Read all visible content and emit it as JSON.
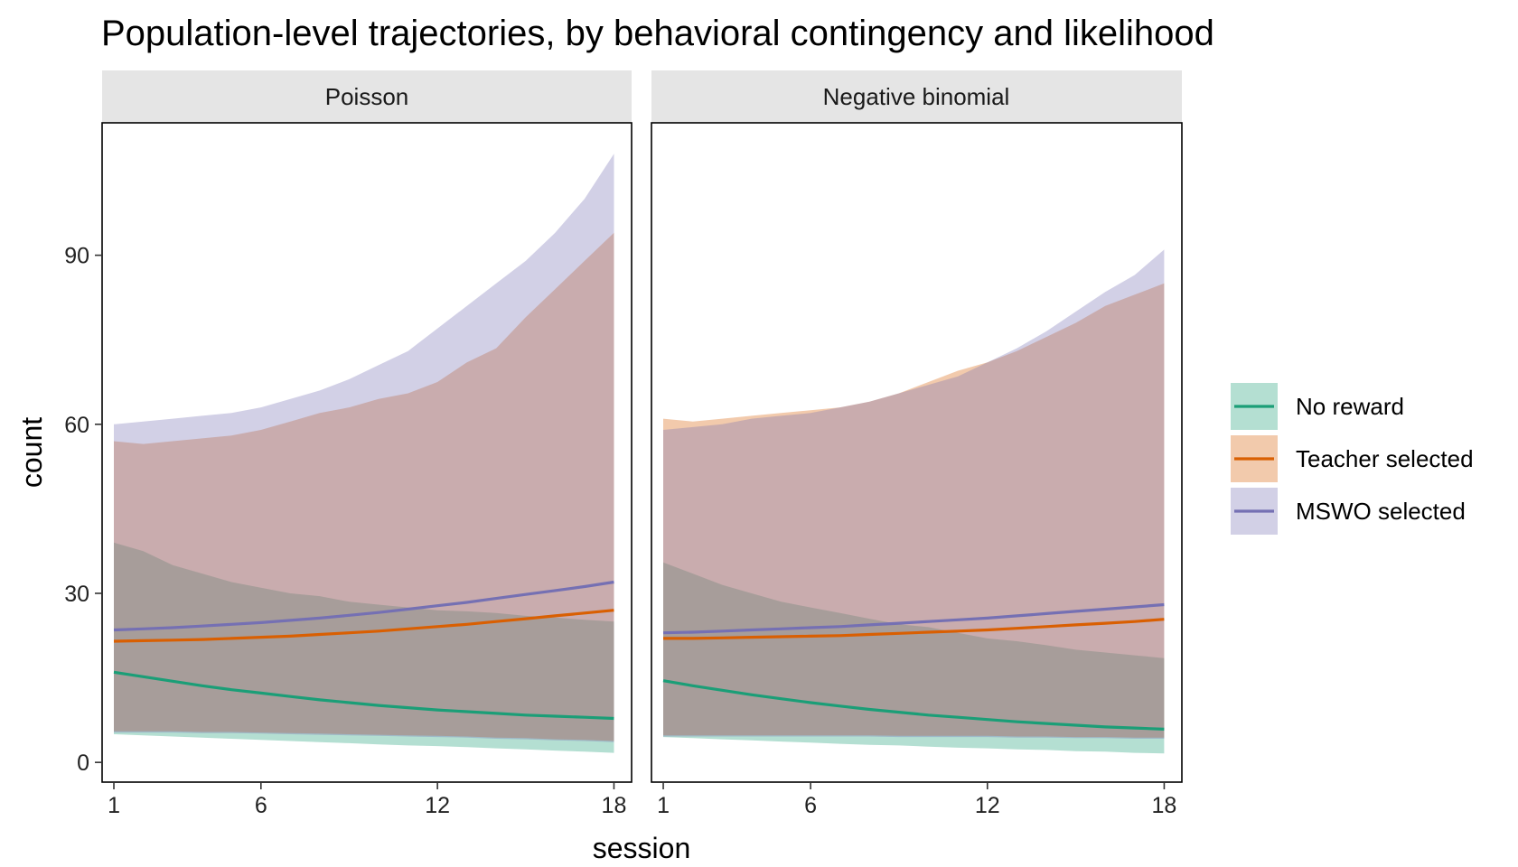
{
  "chart_data": {
    "type": "area",
    "title": "Population-level trajectories, by behavioral contingency and likelihood",
    "xlabel": "session",
    "ylabel": "count",
    "xlim": [
      0.6,
      18.6
    ],
    "ylim": [
      -3.5,
      113.5
    ],
    "x_ticks": [
      1,
      6,
      12,
      18
    ],
    "y_ticks": [
      0,
      30,
      60,
      90
    ],
    "grid": false,
    "legend_position": "right",
    "series": [
      {
        "name": "No reward",
        "color": "#1b9e77"
      },
      {
        "name": "Teacher selected",
        "color": "#d95f02"
      },
      {
        "name": "MSWO selected",
        "color": "#7570b3"
      }
    ],
    "panels": [
      {
        "strip": "Poisson",
        "x": [
          1,
          2,
          3,
          4,
          5,
          6,
          7,
          8,
          9,
          10,
          11,
          12,
          13,
          14,
          15,
          16,
          17,
          18
        ],
        "data": {
          "No reward": {
            "mean": [
              16.0,
              15.2,
              14.4,
              13.6,
              12.9,
              12.3,
              11.7,
              11.1,
              10.6,
              10.1,
              9.7,
              9.3,
              9.0,
              8.7,
              8.4,
              8.2,
              8.0,
              7.8
            ],
            "lower": [
              5.0,
              4.8,
              4.6,
              4.4,
              4.2,
              4.0,
              3.8,
              3.6,
              3.4,
              3.2,
              3.0,
              2.9,
              2.7,
              2.5,
              2.3,
              2.1,
              1.9,
              1.7
            ],
            "upper": [
              39.0,
              37.5,
              35.0,
              33.5,
              32.0,
              31.0,
              30.0,
              29.5,
              28.5,
              28.0,
              27.5,
              27.0,
              26.8,
              26.5,
              26.0,
              25.7,
              25.3,
              25.0
            ]
          },
          "Teacher selected": {
            "mean": [
              21.5,
              21.6,
              21.7,
              21.8,
              22.0,
              22.2,
              22.4,
              22.7,
              23.0,
              23.3,
              23.7,
              24.1,
              24.5,
              25.0,
              25.5,
              26.0,
              26.5,
              27.0
            ],
            "lower": [
              5.5,
              5.5,
              5.5,
              5.4,
              5.4,
              5.3,
              5.2,
              5.1,
              5.0,
              4.9,
              4.8,
              4.7,
              4.6,
              4.4,
              4.3,
              4.1,
              4.0,
              3.8
            ],
            "upper": [
              57.0,
              56.5,
              57.0,
              57.5,
              58.0,
              59.0,
              60.5,
              62.0,
              63.0,
              64.5,
              65.5,
              67.5,
              71.0,
              73.5,
              79.0,
              84.0,
              89.0,
              94.0
            ]
          },
          "MSWO selected": {
            "mean": [
              23.5,
              23.7,
              23.9,
              24.2,
              24.5,
              24.8,
              25.2,
              25.6,
              26.1,
              26.6,
              27.2,
              27.8,
              28.4,
              29.1,
              29.8,
              30.5,
              31.2,
              32.0
            ],
            "lower": [
              5.3,
              5.3,
              5.3,
              5.2,
              5.2,
              5.1,
              5.0,
              4.9,
              4.8,
              4.7,
              4.6,
              4.5,
              4.4,
              4.2,
              4.1,
              3.9,
              3.8,
              3.6
            ],
            "upper": [
              60.0,
              60.5,
              61.0,
              61.5,
              62.0,
              63.0,
              64.5,
              66.0,
              68.0,
              70.5,
              73.0,
              77.0,
              81.0,
              85.0,
              89.0,
              94.0,
              100.0,
              108.0
            ]
          }
        }
      },
      {
        "strip": "Negative binomial",
        "x": [
          1,
          2,
          3,
          4,
          5,
          6,
          7,
          8,
          9,
          10,
          11,
          12,
          13,
          14,
          15,
          16,
          17,
          18
        ],
        "data": {
          "No reward": {
            "mean": [
              14.5,
              13.6,
              12.8,
              12.0,
              11.3,
              10.6,
              10.0,
              9.4,
              8.9,
              8.4,
              8.0,
              7.6,
              7.2,
              6.9,
              6.6,
              6.3,
              6.1,
              5.9
            ],
            "lower": [
              4.5,
              4.3,
              4.1,
              3.9,
              3.7,
              3.5,
              3.3,
              3.1,
              3.0,
              2.8,
              2.6,
              2.5,
              2.3,
              2.2,
              2.0,
              1.9,
              1.7,
              1.6
            ],
            "upper": [
              35.5,
              33.5,
              31.5,
              30.0,
              28.5,
              27.5,
              26.5,
              25.5,
              24.5,
              24.0,
              23.0,
              22.0,
              21.5,
              20.8,
              20.0,
              19.5,
              19.0,
              18.5
            ]
          },
          "Teacher selected": {
            "mean": [
              22.0,
              22.0,
              22.1,
              22.2,
              22.3,
              22.4,
              22.5,
              22.7,
              22.9,
              23.1,
              23.3,
              23.5,
              23.8,
              24.1,
              24.4,
              24.7,
              25.0,
              25.4
            ],
            "lower": [
              4.8,
              4.8,
              4.8,
              4.8,
              4.8,
              4.8,
              4.8,
              4.8,
              4.7,
              4.7,
              4.7,
              4.7,
              4.6,
              4.6,
              4.5,
              4.5,
              4.4,
              4.4
            ],
            "upper": [
              61.0,
              60.5,
              61.0,
              61.5,
              62.0,
              62.5,
              63.0,
              64.0,
              65.5,
              67.5,
              69.5,
              71.0,
              73.0,
              75.5,
              78.0,
              81.0,
              83.0,
              85.0
            ]
          },
          "MSWO selected": {
            "mean": [
              23.0,
              23.1,
              23.3,
              23.5,
              23.7,
              23.9,
              24.1,
              24.4,
              24.7,
              25.0,
              25.3,
              25.6,
              26.0,
              26.4,
              26.8,
              27.2,
              27.6,
              28.0
            ],
            "lower": [
              4.6,
              4.6,
              4.6,
              4.6,
              4.6,
              4.6,
              4.6,
              4.6,
              4.5,
              4.5,
              4.5,
              4.5,
              4.4,
              4.4,
              4.3,
              4.3,
              4.2,
              4.2
            ],
            "upper": [
              59.0,
              59.5,
              60.0,
              61.0,
              61.5,
              62.0,
              63.0,
              64.0,
              65.5,
              67.0,
              68.5,
              71.0,
              73.5,
              76.5,
              80.0,
              83.5,
              86.5,
              91.0
            ]
          }
        }
      }
    ]
  }
}
